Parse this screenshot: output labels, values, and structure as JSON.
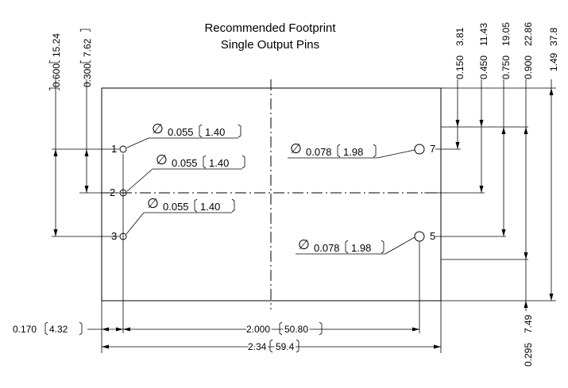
{
  "title": {
    "line1": "Recommended Footprint",
    "line2": "Single Output Pins"
  },
  "pins": [
    {
      "label": "1"
    },
    {
      "label": "2"
    },
    {
      "label": "3"
    },
    {
      "label": "7"
    },
    {
      "label": "5"
    }
  ],
  "hole_callouts": [
    {
      "dia": "0.055",
      "mm": "1.40"
    },
    {
      "dia": "0.055",
      "mm": "1.40"
    },
    {
      "dia": "0.055",
      "mm": "1.40"
    },
    {
      "dia": "0.078",
      "mm": "1.98"
    },
    {
      "dia": "0.078",
      "mm": "1.98"
    }
  ],
  "phi_symbol": "∅",
  "dims_left_vertical": [
    {
      "inch": "0.600",
      "mm": "15.24"
    },
    {
      "inch": "0.300",
      "mm": "7.62"
    }
  ],
  "dims_right_vertical": [
    {
      "inch": "0.150",
      "mm": "3.81"
    },
    {
      "inch": "0.450",
      "mm": "11.43"
    },
    {
      "inch": "0.750",
      "mm": "19.05"
    },
    {
      "inch": "0.900",
      "mm": "22.86"
    },
    {
      "inch": "1.49",
      "mm": "37.8"
    }
  ],
  "dim_bottom_right": {
    "inch": "0.295",
    "mm": "7.49"
  },
  "dims_horizontal": [
    {
      "inch": "0.170",
      "mm": "4.32"
    },
    {
      "inch": "2.000",
      "mm": "50.80"
    },
    {
      "inch": "2.34",
      "mm": "59.4"
    }
  ]
}
